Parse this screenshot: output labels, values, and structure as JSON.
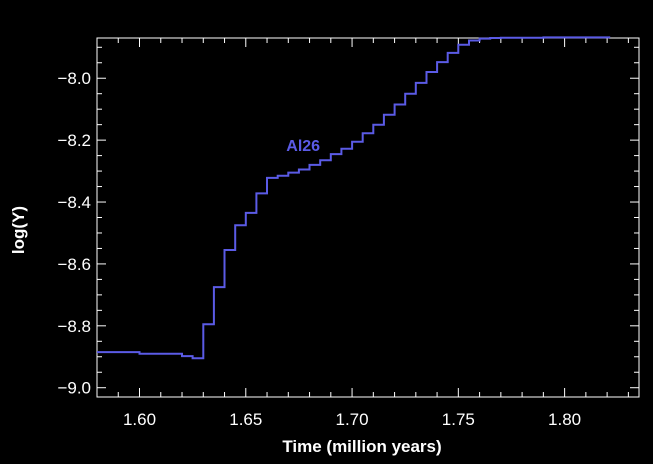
{
  "chart_data": {
    "type": "line",
    "title": "",
    "xlabel": "Time (million years)",
    "ylabel": "log(Y)",
    "xlim": [
      1.58,
      1.835
    ],
    "ylim": [
      -9.03,
      -7.87
    ],
    "x_ticks": [
      1.6,
      1.65,
      1.7,
      1.75,
      1.8
    ],
    "x_tick_labels": [
      "1.60",
      "1.65",
      "1.70",
      "1.75",
      "1.80"
    ],
    "y_ticks": [
      -9.0,
      -8.8,
      -8.6,
      -8.4,
      -8.2,
      -8.0
    ],
    "y_tick_labels": [
      "−9.0",
      "−8.8",
      "−8.6",
      "−8.4",
      "−8.2",
      "−8.0"
    ],
    "grid": false,
    "background": "#000000",
    "axis_color": "#ffffff",
    "series": [
      {
        "name": "Al26",
        "color": "#5b5be6",
        "step": true,
        "x": [
          1.58,
          1.6,
          1.62,
          1.625,
          1.63,
          1.635,
          1.64,
          1.645,
          1.65,
          1.655,
          1.66,
          1.665,
          1.67,
          1.675,
          1.68,
          1.685,
          1.69,
          1.695,
          1.7,
          1.705,
          1.71,
          1.715,
          1.72,
          1.725,
          1.73,
          1.735,
          1.74,
          1.745,
          1.75,
          1.755,
          1.76,
          1.765,
          1.77,
          1.78,
          1.79,
          1.8,
          1.81,
          1.821
        ],
        "y": [
          -8.885,
          -8.89,
          -8.898,
          -8.905,
          -8.795,
          -8.675,
          -8.555,
          -8.475,
          -8.435,
          -8.372,
          -8.322,
          -8.315,
          -8.305,
          -8.295,
          -8.28,
          -8.265,
          -8.245,
          -8.228,
          -8.205,
          -8.178,
          -8.15,
          -8.118,
          -8.085,
          -8.05,
          -8.015,
          -7.98,
          -7.948,
          -7.918,
          -7.892,
          -7.878,
          -7.872,
          -7.87,
          -7.869,
          -7.869,
          -7.868,
          -7.868,
          -7.868,
          -7.87
        ]
      }
    ],
    "annotations": [
      {
        "text": "Al26",
        "x": 1.677,
        "y": -8.235
      }
    ]
  }
}
